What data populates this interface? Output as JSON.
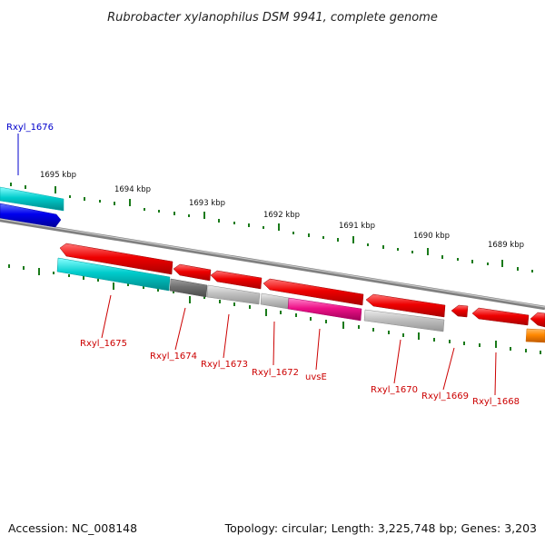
{
  "map": {
    "title": "Rubrobacter xylanophilus DSM 9941, complete genome",
    "accession": "Accession: NC_008148",
    "summary": "Topology: circular; Length: 3,225,748 bp; Genes: 3,203",
    "kbp_labels": [
      "1695 kbp",
      "1694 kbp",
      "1693 kbp",
      "1692 kbp",
      "1691 kbp",
      "1690 kbp",
      "1689 kbp"
    ],
    "gene_labels": [
      {
        "text": "Rxyl_1676",
        "color": "#0000cc"
      },
      {
        "text": "Rxyl_1675",
        "color": "#cc0000"
      },
      {
        "text": "Rxyl_1674",
        "color": "#cc0000"
      },
      {
        "text": "Rxyl_1673",
        "color": "#cc0000"
      },
      {
        "text": "Rxyl_1672",
        "color": "#cc0000"
      },
      {
        "text": "uvsE",
        "color": "#cc0000"
      },
      {
        "text": "Rxyl_1670",
        "color": "#cc0000"
      },
      {
        "text": "Rxyl_1669",
        "color": "#cc0000"
      },
      {
        "text": "Rxyl_1668",
        "color": "#cc0000"
      }
    ],
    "colors": {
      "backbone": "#808080",
      "tick": "#1a7a1a",
      "forward_gene": "#ee0000",
      "cyan_gene": "#00cccc",
      "blue_gene": "#0000ee",
      "magenta_gene": "#ee1188",
      "dark_gray_gene": "#707070",
      "light_gray_gene": "#bdbdbd",
      "orange_gene": "#ff8800"
    }
  }
}
